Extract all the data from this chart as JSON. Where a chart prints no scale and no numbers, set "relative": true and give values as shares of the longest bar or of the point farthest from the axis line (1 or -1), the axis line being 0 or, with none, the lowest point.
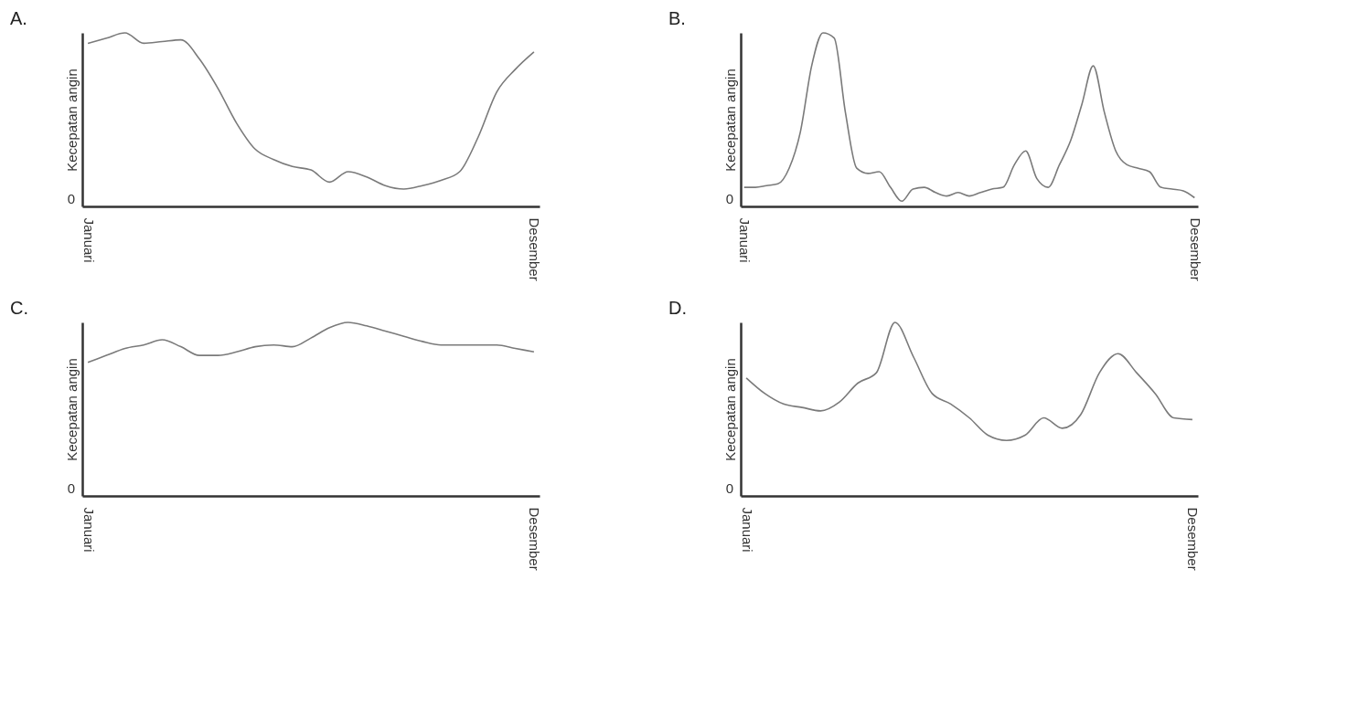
{
  "chart_data": [
    {
      "type": "line",
      "title": "A.",
      "ylabel": "Kecepatan angin",
      "relative": true,
      "annotations": [
        "0"
      ],
      "categories": [
        "Januari",
        null,
        null,
        null,
        null,
        null,
        null,
        null,
        null,
        null,
        null,
        null,
        null,
        null,
        null,
        null,
        null,
        null,
        null,
        null,
        null,
        null,
        null,
        null,
        "Desember"
      ],
      "series": [
        {
          "color": "#7a7a7a",
          "values": [
            0.94,
            0.97,
            1,
            0.94,
            0.95,
            0.96,
            0.85,
            0.68,
            0.48,
            0.33,
            0.27,
            0.23,
            0.21,
            0.14,
            0.2,
            0.17,
            0.12,
            0.1,
            0.12,
            0.15,
            0.2,
            0.4,
            0.66,
            0.79,
            0.89
          ]
        }
      ]
    },
    {
      "type": "line",
      "title": "B.",
      "ylabel": "Kecepatan angin",
      "relative": true,
      "annotations": [
        "0"
      ],
      "categories": [
        "Januari",
        null,
        null,
        null,
        null,
        null,
        null,
        null,
        null,
        null,
        null,
        null,
        null,
        null,
        null,
        null,
        null,
        null,
        null,
        null,
        null,
        null,
        null,
        null,
        null,
        null,
        null,
        null,
        null,
        null,
        null,
        null,
        null,
        null,
        null,
        null,
        null,
        null,
        null,
        null,
        "Desember"
      ],
      "series": [
        {
          "color": "#7a7a7a",
          "values": [
            0.11,
            0.11,
            0.12,
            0.13,
            0.22,
            0.43,
            0.81,
            1,
            0.97,
            0.54,
            0.22,
            0.19,
            0.2,
            0.11,
            0.03,
            0.1,
            0.11,
            0.08,
            0.06,
            0.08,
            0.06,
            0.08,
            0.1,
            0.11,
            0.24,
            0.32,
            0.16,
            0.11,
            0.24,
            0.38,
            0.59,
            0.81,
            0.54,
            0.32,
            0.24,
            0.22,
            0.2,
            0.11,
            0.1,
            0.09,
            0.05
          ]
        }
      ]
    },
    {
      "type": "line",
      "title": "C.",
      "ylabel": "Kecepatan angin",
      "relative": true,
      "annotations": [
        "0"
      ],
      "categories": [
        "Januari",
        null,
        null,
        null,
        null,
        null,
        null,
        null,
        null,
        null,
        null,
        null,
        null,
        null,
        null,
        null,
        null,
        null,
        null,
        null,
        null,
        null,
        null,
        null,
        "Desember"
      ],
      "series": [
        {
          "color": "#7a7a7a",
          "values": [
            0.77,
            0.81,
            0.85,
            0.87,
            0.9,
            0.86,
            0.81,
            0.81,
            0.83,
            0.86,
            0.87,
            0.86,
            0.91,
            0.97,
            1,
            0.98,
            0.95,
            0.92,
            0.89,
            0.87,
            0.87,
            0.87,
            0.87,
            0.85,
            0.83
          ]
        }
      ]
    },
    {
      "type": "line",
      "title": "D.",
      "ylabel": "Kecepatan angin",
      "relative": true,
      "annotations": [
        "0"
      ],
      "categories": [
        "Januari",
        null,
        null,
        null,
        null,
        null,
        null,
        null,
        null,
        null,
        null,
        null,
        null,
        null,
        null,
        null,
        null,
        null,
        null,
        null,
        null,
        null,
        null,
        null,
        "Desember"
      ],
      "series": [
        {
          "color": "#7a7a7a",
          "values": [
            0.68,
            0.59,
            0.53,
            0.51,
            0.49,
            0.54,
            0.65,
            0.71,
            1,
            0.8,
            0.59,
            0.53,
            0.45,
            0.35,
            0.32,
            0.35,
            0.45,
            0.39,
            0.47,
            0.71,
            0.82,
            0.71,
            0.59,
            0.45,
            0.44
          ]
        }
      ]
    }
  ]
}
